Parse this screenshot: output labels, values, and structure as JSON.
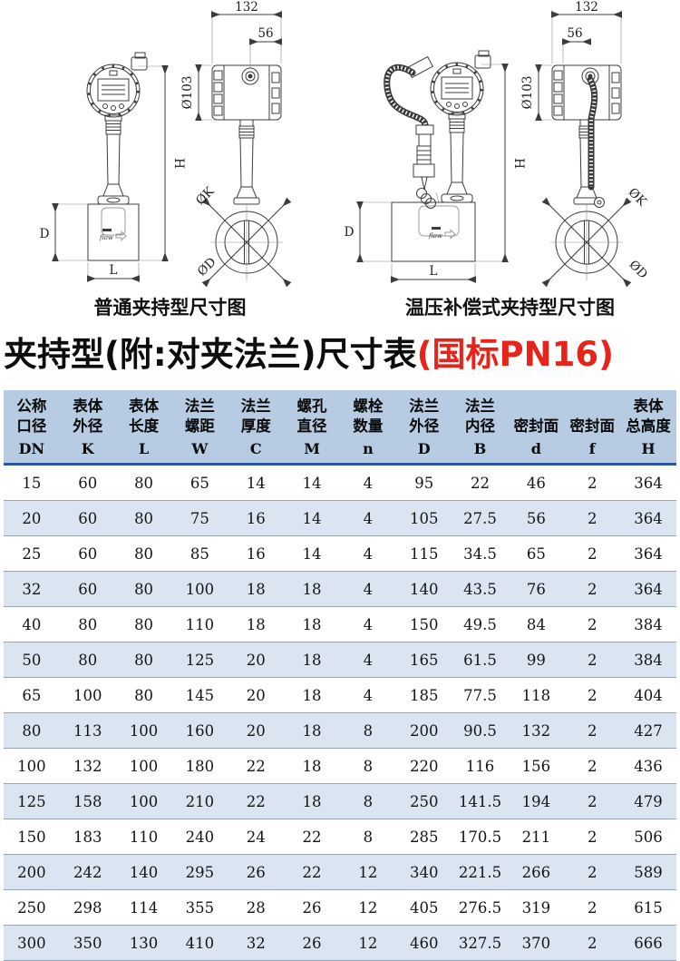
{
  "colors": {
    "accent_red": "#e8231a",
    "header_bg": "#b7cbe3",
    "row_alt_bg": "#dbe5f1",
    "header_rule": "#2b57a5",
    "row_border": "#97a4b4"
  },
  "diagrams": {
    "captions": {
      "left": "普通夹持型尺寸图",
      "right": "温压补偿式夹持型尺寸图"
    },
    "labels": {
      "top_width": "132",
      "offset_width": "56",
      "housing_dia": "Ø103",
      "total_height": "H",
      "body_depth": "D",
      "body_length": "L",
      "bolt_circle": "ØK",
      "flange_dia": "ØD",
      "flow": "flow"
    }
  },
  "title": {
    "main": "夹持型(附:对夹法兰)尺寸表",
    "highlight": "(国标PN16)"
  },
  "table": {
    "headers": [
      {
        "lines": [
          "公称",
          "口径"
        ],
        "symbol": "DN"
      },
      {
        "lines": [
          "表体",
          "外径"
        ],
        "symbol": "K"
      },
      {
        "lines": [
          "表体",
          "长度"
        ],
        "symbol": "L"
      },
      {
        "lines": [
          "法兰",
          "螺距"
        ],
        "symbol": "W"
      },
      {
        "lines": [
          "法兰",
          "厚度"
        ],
        "symbol": "C"
      },
      {
        "lines": [
          "螺孔",
          "直径"
        ],
        "symbol": "M"
      },
      {
        "lines": [
          "螺栓",
          "数量"
        ],
        "symbol": "n"
      },
      {
        "lines": [
          "法兰",
          "外径"
        ],
        "symbol": "D"
      },
      {
        "lines": [
          "法兰",
          "内径"
        ],
        "symbol": "B"
      },
      {
        "lines": [
          "密封面"
        ],
        "symbol": "d"
      },
      {
        "lines": [
          "密封面"
        ],
        "symbol": "f"
      },
      {
        "lines": [
          "表体",
          "总高度"
        ],
        "symbol": "H"
      }
    ],
    "rows": [
      [
        "15",
        "60",
        "80",
        "65",
        "14",
        "14",
        "4",
        "95",
        "22",
        "46",
        "2",
        "364"
      ],
      [
        "20",
        "60",
        "80",
        "75",
        "16",
        "14",
        "4",
        "105",
        "27.5",
        "56",
        "2",
        "364"
      ],
      [
        "25",
        "60",
        "80",
        "85",
        "16",
        "14",
        "4",
        "115",
        "34.5",
        "65",
        "2",
        "364"
      ],
      [
        "32",
        "60",
        "80",
        "100",
        "18",
        "18",
        "4",
        "140",
        "43.5",
        "76",
        "2",
        "364"
      ],
      [
        "40",
        "80",
        "80",
        "110",
        "18",
        "18",
        "4",
        "150",
        "49.5",
        "84",
        "2",
        "384"
      ],
      [
        "50",
        "80",
        "80",
        "125",
        "20",
        "18",
        "4",
        "165",
        "61.5",
        "99",
        "2",
        "384"
      ],
      [
        "65",
        "100",
        "80",
        "145",
        "20",
        "18",
        "4",
        "185",
        "77.5",
        "118",
        "2",
        "404"
      ],
      [
        "80",
        "113",
        "100",
        "160",
        "20",
        "18",
        "8",
        "200",
        "90.5",
        "132",
        "2",
        "427"
      ],
      [
        "100",
        "132",
        "100",
        "180",
        "22",
        "18",
        "8",
        "220",
        "116",
        "156",
        "2",
        "436"
      ],
      [
        "125",
        "158",
        "100",
        "210",
        "22",
        "18",
        "8",
        "250",
        "141.5",
        "194",
        "2",
        "479"
      ],
      [
        "150",
        "183",
        "110",
        "240",
        "24",
        "22",
        "8",
        "285",
        "170.5",
        "211",
        "2",
        "506"
      ],
      [
        "200",
        "242",
        "140",
        "295",
        "26",
        "22",
        "12",
        "340",
        "221.5",
        "266",
        "2",
        "589"
      ],
      [
        "250",
        "298",
        "114",
        "355",
        "28",
        "26",
        "12",
        "405",
        "276.5",
        "319",
        "2",
        "615"
      ],
      [
        "300",
        "350",
        "130",
        "410",
        "32",
        "26",
        "12",
        "460",
        "327.5",
        "370",
        "2",
        "666"
      ]
    ]
  }
}
